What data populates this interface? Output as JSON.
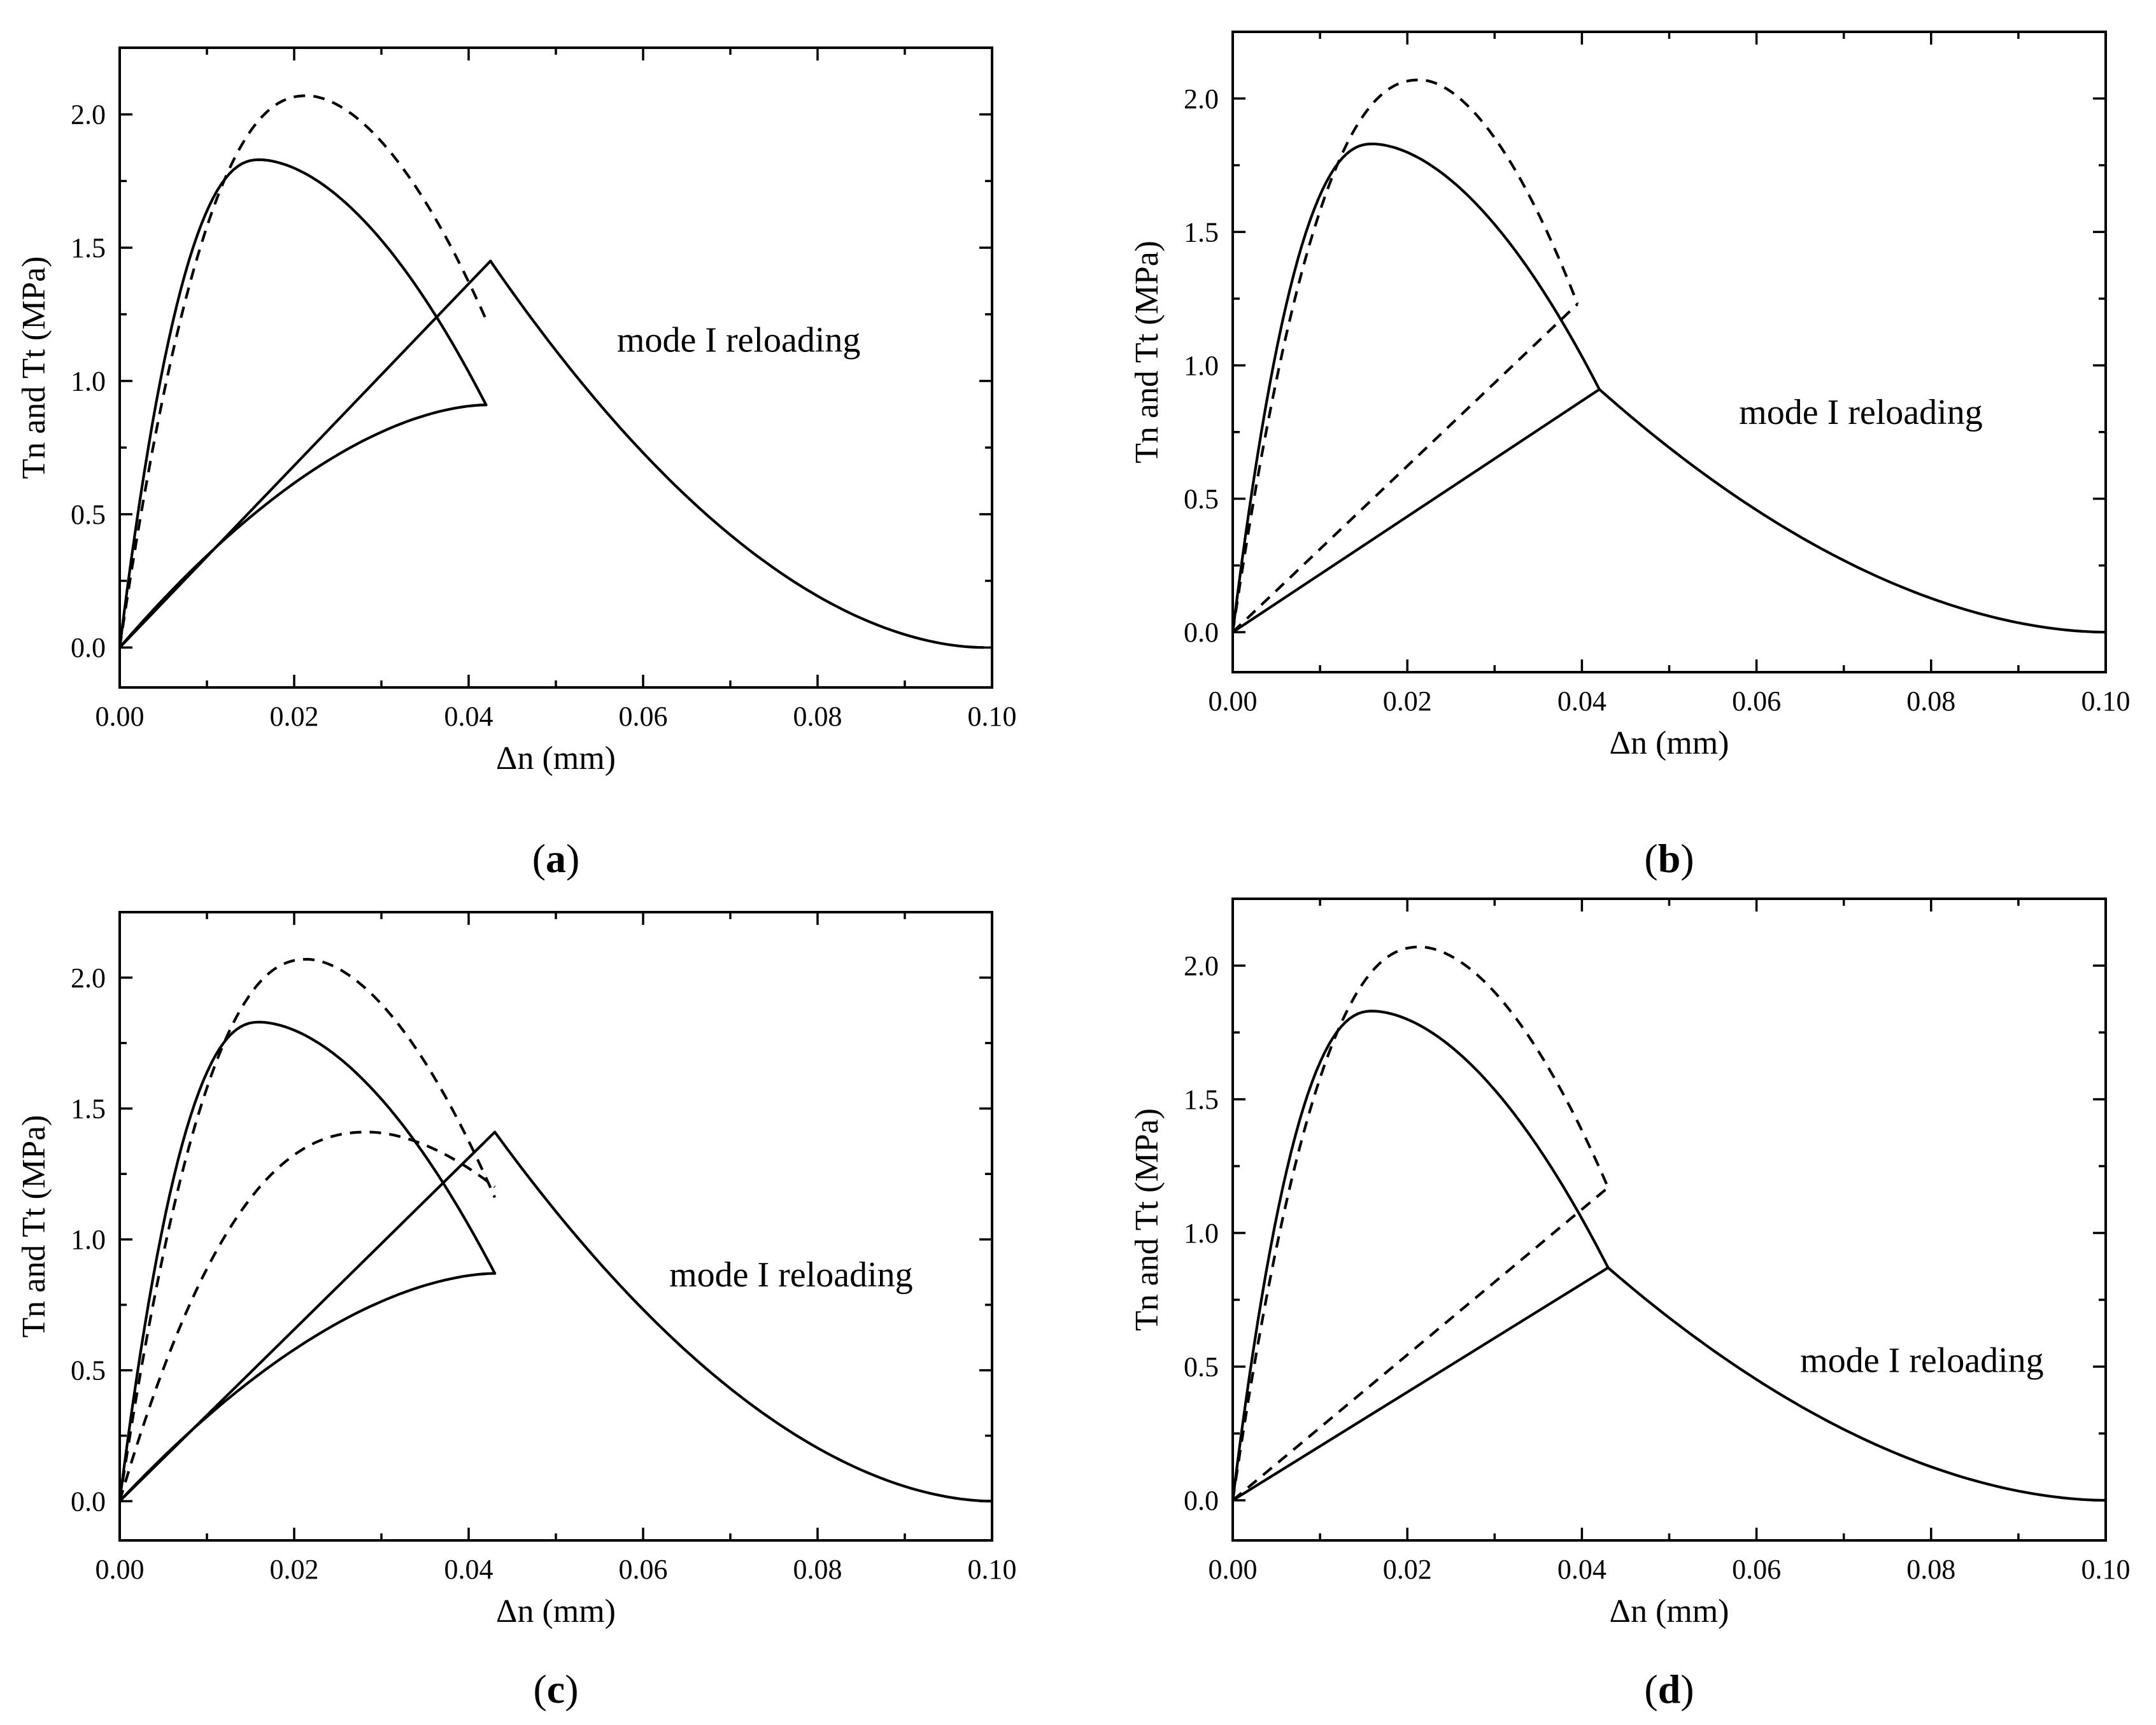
{
  "chart_data": [
    {
      "panel": "a",
      "type": "line",
      "xlabel": "Δn (mm)",
      "ylabel": "Tn and Tt (MPa)",
      "xlim": [
        0,
        0.1
      ],
      "ylim": [
        -0.15,
        2.25
      ],
      "x_ticks": [
        0,
        0.02,
        0.04,
        0.06,
        0.08,
        0.1
      ],
      "x_tick_labels": [
        "0.00",
        "0.02",
        "0.04",
        "0.06",
        "0.08",
        "0.10"
      ],
      "y_ticks": [
        0,
        0.5,
        1.0,
        1.5,
        2.0
      ],
      "y_tick_labels": [
        "0.0",
        "0.5",
        "1.0",
        "1.5",
        "2.0"
      ],
      "annotation": "mode I reloading",
      "series": [
        {
          "name": "solid-traction-loading",
          "style": "solid",
          "kind": "peak",
          "x_end": 0.042,
          "y_end": 0.91,
          "peak_x": 0.016,
          "peak_y": 1.83
        },
        {
          "name": "dashed-traction-loading",
          "style": "dashed",
          "kind": "peak",
          "x_end": 0.042,
          "y_end": 1.23,
          "peak_x": 0.0215,
          "peak_y": 2.07
        },
        {
          "name": "solid-unloading-curve",
          "style": "solid",
          "kind": "concave",
          "x_start": 0,
          "y_start": 0,
          "x_end": 0.042,
          "y_end": 0.91
        },
        {
          "name": "solid-reloading-line",
          "style": "solid",
          "kind": "points",
          "x": [
            0,
            0.0425
          ],
          "y": [
            0,
            1.45
          ]
        },
        {
          "name": "solid-softening-tail",
          "style": "solid",
          "kind": "tail",
          "x_start": 0.0425,
          "y_start": 1.45,
          "x_end": 0.099,
          "y_end": 0
        }
      ]
    },
    {
      "panel": "b",
      "type": "line",
      "xlabel": "Δn (mm)",
      "ylabel": "Tn and Tt (MPa)",
      "xlim": [
        0,
        0.1
      ],
      "ylim": [
        -0.15,
        2.25
      ],
      "x_ticks": [
        0,
        0.02,
        0.04,
        0.06,
        0.08,
        0.1
      ],
      "x_tick_labels": [
        "0.00",
        "0.02",
        "0.04",
        "0.06",
        "0.08",
        "0.10"
      ],
      "y_ticks": [
        0,
        0.5,
        1.0,
        1.5,
        2.0
      ],
      "y_tick_labels": [
        "0.0",
        "0.5",
        "1.0",
        "1.5",
        "2.0"
      ],
      "annotation": "mode I reloading",
      "series": [
        {
          "name": "solid-traction-loading",
          "style": "solid",
          "kind": "peak",
          "x_end": 0.042,
          "y_end": 0.91,
          "peak_x": 0.016,
          "peak_y": 1.83
        },
        {
          "name": "dashed-traction-loading",
          "style": "dashed",
          "kind": "peak",
          "x_end": 0.0395,
          "y_end": 1.23,
          "peak_x": 0.0215,
          "peak_y": 2.07
        },
        {
          "name": "dashed-unloading-line",
          "style": "dashed",
          "kind": "points",
          "x": [
            0,
            0.0395
          ],
          "y": [
            0,
            1.23
          ]
        },
        {
          "name": "solid-reloading-line",
          "style": "solid",
          "kind": "points",
          "x": [
            0,
            0.042
          ],
          "y": [
            0,
            0.91
          ]
        },
        {
          "name": "solid-softening-tail",
          "style": "solid",
          "kind": "tail",
          "x_start": 0.042,
          "y_start": 0.91,
          "x_end": 0.1,
          "y_end": 0
        }
      ]
    },
    {
      "panel": "c",
      "type": "line",
      "xlabel": "Δn (mm)",
      "ylabel": "Tn and Tt (MPa)",
      "xlim": [
        0,
        0.1
      ],
      "ylim": [
        -0.15,
        2.25
      ],
      "x_ticks": [
        0,
        0.02,
        0.04,
        0.06,
        0.08,
        0.1
      ],
      "x_tick_labels": [
        "0.00",
        "0.02",
        "0.04",
        "0.06",
        "0.08",
        "0.10"
      ],
      "y_ticks": [
        0,
        0.5,
        1.0,
        1.5,
        2.0
      ],
      "y_tick_labels": [
        "0.0",
        "0.5",
        "1.0",
        "1.5",
        "2.0"
      ],
      "annotation": "mode I reloading",
      "series": [
        {
          "name": "solid-traction-loading",
          "style": "solid",
          "kind": "peak",
          "x_end": 0.043,
          "y_end": 0.87,
          "peak_x": 0.016,
          "peak_y": 1.83
        },
        {
          "name": "dashed-traction-loading",
          "style": "dashed",
          "kind": "peak",
          "x_end": 0.043,
          "y_end": 1.16,
          "peak_x": 0.0215,
          "peak_y": 2.07
        },
        {
          "name": "dashed-second-curve",
          "style": "dashed",
          "kind": "peak",
          "x_end": 0.043,
          "y_end": 1.2,
          "peak_x": 0.0285,
          "peak_y": 1.41
        },
        {
          "name": "solid-unloading-curve",
          "style": "solid",
          "kind": "concave",
          "x_start": 0,
          "y_start": 0,
          "x_end": 0.043,
          "y_end": 0.87
        },
        {
          "name": "solid-reloading-line",
          "style": "solid",
          "kind": "points",
          "x": [
            0,
            0.043
          ],
          "y": [
            0,
            1.41
          ]
        },
        {
          "name": "solid-softening-tail",
          "style": "solid",
          "kind": "tail",
          "x_start": 0.043,
          "y_start": 1.41,
          "x_end": 0.1,
          "y_end": 0
        }
      ]
    },
    {
      "panel": "d",
      "type": "line",
      "xlabel": "Δn (mm)",
      "ylabel": "Tn and Tt (MPa)",
      "xlim": [
        0,
        0.1
      ],
      "ylim": [
        -0.15,
        2.25
      ],
      "x_ticks": [
        0,
        0.02,
        0.04,
        0.06,
        0.08,
        0.1
      ],
      "x_tick_labels": [
        "0.00",
        "0.02",
        "0.04",
        "0.06",
        "0.08",
        "0.10"
      ],
      "y_ticks": [
        0,
        0.5,
        1.0,
        1.5,
        2.0
      ],
      "y_tick_labels": [
        "0.0",
        "0.5",
        "1.0",
        "1.5",
        "2.0"
      ],
      "annotation": "mode I reloading",
      "series": [
        {
          "name": "solid-traction-loading",
          "style": "solid",
          "kind": "peak",
          "x_end": 0.043,
          "y_end": 0.87,
          "peak_x": 0.016,
          "peak_y": 1.83
        },
        {
          "name": "dashed-traction-loading",
          "style": "dashed",
          "kind": "peak",
          "x_end": 0.043,
          "y_end": 1.17,
          "peak_x": 0.0215,
          "peak_y": 2.07
        },
        {
          "name": "dashed-unloading-line",
          "style": "dashed",
          "kind": "points",
          "x": [
            0,
            0.043
          ],
          "y": [
            0,
            1.17
          ]
        },
        {
          "name": "solid-reloading-line",
          "style": "solid",
          "kind": "points",
          "x": [
            0,
            0.043
          ],
          "y": [
            0,
            0.87
          ]
        },
        {
          "name": "solid-softening-tail",
          "style": "solid",
          "kind": "tail",
          "x_start": 0.043,
          "y_start": 0.87,
          "x_end": 0.1,
          "y_end": 0
        }
      ]
    }
  ],
  "panel_labels": [
    {
      "open": "(",
      "letter": "a",
      "close": ")"
    },
    {
      "open": "(",
      "letter": "b",
      "close": ")"
    },
    {
      "open": "(",
      "letter": "c",
      "close": ")"
    },
    {
      "open": "(",
      "letter": "d",
      "close": ")"
    }
  ]
}
